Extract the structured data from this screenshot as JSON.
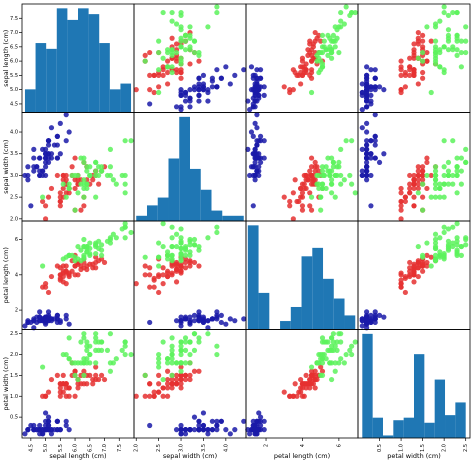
{
  "chart_data": {
    "type": "scatter",
    "kind": "scatter-matrix",
    "diagonal": "histogram",
    "variables": [
      "sepal length (cm)",
      "sepal width (cm)",
      "petal length (cm)",
      "petal width (cm)"
    ],
    "ranges": [
      [
        4.2,
        8.0
      ],
      [
        1.95,
        4.45
      ],
      [
        0.9,
        7.05
      ],
      [
        0.0,
        2.6
      ]
    ],
    "ticks": [
      [
        "4.5",
        "5.0",
        "5.5",
        "6.0",
        "6.5",
        "7.0",
        "7.5"
      ],
      [
        "2.0",
        "2.5",
        "3.0",
        "3.5",
        "4.0"
      ],
      [
        "2",
        "4",
        "6"
      ],
      [
        "0.5",
        "1.0",
        "1.5",
        "2.0",
        "2.5"
      ]
    ],
    "histograms": [
      {
        "bins": [
          [
            4.3,
            4.66,
            4
          ],
          [
            4.66,
            5.02,
            12
          ],
          [
            5.02,
            5.38,
            11
          ],
          [
            5.38,
            5.74,
            18
          ],
          [
            5.74,
            6.1,
            16
          ],
          [
            6.1,
            6.46,
            18
          ],
          [
            6.46,
            6.82,
            17
          ],
          [
            6.82,
            7.18,
            12
          ],
          [
            7.18,
            7.54,
            4
          ],
          [
            7.54,
            7.9,
            5
          ]
        ]
      },
      {
        "bins": [
          [
            2.0,
            2.24,
            2
          ],
          [
            2.24,
            2.48,
            6
          ],
          [
            2.48,
            2.72,
            9
          ],
          [
            2.72,
            2.96,
            24
          ],
          [
            2.96,
            3.2,
            40
          ],
          [
            3.2,
            3.44,
            20
          ],
          [
            3.44,
            3.68,
            12
          ],
          [
            3.68,
            3.92,
            4
          ],
          [
            3.92,
            4.16,
            2
          ],
          [
            4.16,
            4.4,
            2
          ]
        ]
      },
      {
        "bins": [
          [
            1.0,
            1.59,
            37
          ],
          [
            1.59,
            2.18,
            13
          ],
          [
            2.18,
            2.77,
            0
          ],
          [
            2.77,
            3.36,
            3
          ],
          [
            3.36,
            3.95,
            8
          ],
          [
            3.95,
            4.54,
            26
          ],
          [
            4.54,
            5.13,
            29
          ],
          [
            5.13,
            5.72,
            18
          ],
          [
            5.72,
            6.31,
            11
          ],
          [
            6.31,
            6.9,
            5
          ]
        ]
      },
      {
        "bins": [
          [
            0.1,
            0.34,
            41
          ],
          [
            0.34,
            0.58,
            8
          ],
          [
            0.58,
            0.82,
            1
          ],
          [
            0.82,
            1.06,
            7
          ],
          [
            1.06,
            1.3,
            8
          ],
          [
            1.3,
            1.54,
            33
          ],
          [
            1.54,
            1.78,
            6
          ],
          [
            1.78,
            2.02,
            23
          ],
          [
            2.02,
            2.26,
            9
          ],
          [
            2.26,
            2.5,
            14
          ]
        ]
      }
    ],
    "series": [
      {
        "color": "#1a1aa8",
        "values": [
          [
            5.1,
            3.5,
            1.4,
            0.2
          ],
          [
            4.9,
            3.0,
            1.4,
            0.2
          ],
          [
            4.7,
            3.2,
            1.3,
            0.2
          ],
          [
            4.6,
            3.1,
            1.5,
            0.2
          ],
          [
            5.0,
            3.6,
            1.4,
            0.2
          ],
          [
            5.4,
            3.9,
            1.7,
            0.4
          ],
          [
            4.6,
            3.4,
            1.4,
            0.3
          ],
          [
            5.0,
            3.4,
            1.5,
            0.2
          ],
          [
            4.4,
            2.9,
            1.4,
            0.2
          ],
          [
            4.9,
            3.1,
            1.5,
            0.1
          ],
          [
            5.4,
            3.7,
            1.5,
            0.2
          ],
          [
            4.8,
            3.4,
            1.6,
            0.2
          ],
          [
            4.8,
            3.0,
            1.4,
            0.1
          ],
          [
            4.3,
            3.0,
            1.1,
            0.1
          ],
          [
            5.8,
            4.0,
            1.2,
            0.2
          ],
          [
            5.7,
            4.4,
            1.5,
            0.4
          ],
          [
            5.4,
            3.9,
            1.3,
            0.4
          ],
          [
            5.1,
            3.5,
            1.4,
            0.3
          ],
          [
            5.7,
            3.8,
            1.7,
            0.3
          ],
          [
            5.1,
            3.8,
            1.5,
            0.3
          ],
          [
            5.4,
            3.4,
            1.7,
            0.2
          ],
          [
            5.1,
            3.7,
            1.5,
            0.4
          ],
          [
            4.6,
            3.6,
            1.0,
            0.2
          ],
          [
            5.1,
            3.3,
            1.7,
            0.5
          ],
          [
            4.8,
            3.4,
            1.9,
            0.2
          ],
          [
            5.0,
            3.0,
            1.6,
            0.2
          ],
          [
            5.0,
            3.4,
            1.6,
            0.4
          ],
          [
            5.2,
            3.5,
            1.5,
            0.2
          ],
          [
            5.2,
            3.4,
            1.4,
            0.2
          ],
          [
            4.7,
            3.2,
            1.6,
            0.2
          ],
          [
            4.8,
            3.1,
            1.6,
            0.2
          ],
          [
            5.4,
            3.4,
            1.5,
            0.4
          ],
          [
            5.2,
            4.1,
            1.5,
            0.1
          ],
          [
            5.5,
            4.2,
            1.4,
            0.2
          ],
          [
            4.9,
            3.1,
            1.5,
            0.2
          ],
          [
            5.0,
            3.2,
            1.2,
            0.2
          ],
          [
            5.5,
            3.5,
            1.3,
            0.2
          ],
          [
            4.9,
            3.6,
            1.4,
            0.1
          ],
          [
            4.4,
            3.0,
            1.3,
            0.2
          ],
          [
            5.1,
            3.4,
            1.5,
            0.2
          ],
          [
            5.0,
            3.5,
            1.3,
            0.3
          ],
          [
            4.5,
            2.3,
            1.3,
            0.3
          ],
          [
            4.4,
            3.2,
            1.3,
            0.2
          ],
          [
            5.0,
            3.5,
            1.6,
            0.6
          ],
          [
            5.1,
            3.8,
            1.9,
            0.4
          ],
          [
            4.8,
            3.0,
            1.4,
            0.3
          ],
          [
            5.1,
            3.8,
            1.6,
            0.2
          ],
          [
            4.6,
            3.2,
            1.4,
            0.2
          ],
          [
            5.3,
            3.7,
            1.5,
            0.2
          ],
          [
            5.0,
            3.3,
            1.4,
            0.2
          ]
        ]
      },
      {
        "color": "#e53030",
        "values": [
          [
            7.0,
            3.2,
            4.7,
            1.4
          ],
          [
            6.4,
            3.2,
            4.5,
            1.5
          ],
          [
            6.9,
            3.1,
            4.9,
            1.5
          ],
          [
            5.5,
            2.3,
            4.0,
            1.3
          ],
          [
            6.5,
            2.8,
            4.6,
            1.5
          ],
          [
            5.7,
            2.8,
            4.5,
            1.3
          ],
          [
            6.3,
            3.3,
            4.7,
            1.6
          ],
          [
            4.9,
            2.4,
            3.3,
            1.0
          ],
          [
            6.6,
            2.9,
            4.6,
            1.3
          ],
          [
            5.2,
            2.7,
            3.9,
            1.4
          ],
          [
            5.0,
            2.0,
            3.5,
            1.0
          ],
          [
            5.9,
            3.0,
            4.2,
            1.5
          ],
          [
            6.0,
            2.2,
            4.0,
            1.0
          ],
          [
            6.1,
            2.9,
            4.7,
            1.4
          ],
          [
            5.6,
            2.9,
            3.6,
            1.3
          ],
          [
            6.7,
            3.1,
            4.4,
            1.4
          ],
          [
            5.6,
            3.0,
            4.5,
            1.5
          ],
          [
            5.8,
            2.7,
            4.1,
            1.0
          ],
          [
            6.2,
            2.2,
            4.5,
            1.5
          ],
          [
            5.6,
            2.5,
            3.9,
            1.1
          ],
          [
            5.9,
            3.2,
            4.8,
            1.8
          ],
          [
            6.1,
            2.8,
            4.0,
            1.3
          ],
          [
            6.3,
            2.5,
            4.9,
            1.5
          ],
          [
            6.1,
            2.8,
            4.7,
            1.2
          ],
          [
            6.4,
            2.9,
            4.3,
            1.3
          ],
          [
            6.6,
            3.0,
            4.4,
            1.4
          ],
          [
            6.8,
            2.8,
            4.8,
            1.4
          ],
          [
            6.7,
            3.0,
            5.0,
            1.7
          ],
          [
            6.0,
            2.9,
            4.5,
            1.5
          ],
          [
            5.7,
            2.6,
            3.5,
            1.0
          ],
          [
            5.5,
            2.4,
            3.8,
            1.1
          ],
          [
            5.5,
            2.4,
            3.7,
            1.0
          ],
          [
            5.8,
            2.7,
            3.9,
            1.2
          ],
          [
            6.0,
            2.7,
            5.1,
            1.6
          ],
          [
            5.4,
            3.0,
            4.5,
            1.5
          ],
          [
            6.0,
            3.4,
            4.5,
            1.6
          ],
          [
            6.7,
            3.1,
            4.7,
            1.5
          ],
          [
            6.3,
            2.3,
            4.4,
            1.3
          ],
          [
            5.6,
            3.0,
            4.1,
            1.3
          ],
          [
            5.5,
            2.5,
            4.0,
            1.3
          ],
          [
            5.5,
            2.6,
            4.4,
            1.2
          ],
          [
            6.1,
            3.0,
            4.6,
            1.4
          ],
          [
            5.8,
            2.6,
            4.0,
            1.2
          ],
          [
            5.0,
            2.3,
            3.3,
            1.0
          ],
          [
            5.6,
            2.7,
            4.2,
            1.3
          ],
          [
            5.7,
            3.0,
            4.2,
            1.2
          ],
          [
            5.7,
            2.9,
            4.2,
            1.3
          ],
          [
            6.2,
            2.9,
            4.3,
            1.3
          ],
          [
            5.1,
            2.5,
            3.0,
            1.1
          ],
          [
            5.7,
            2.8,
            4.1,
            1.3
          ]
        ]
      },
      {
        "color": "#5cf25c",
        "values": [
          [
            6.3,
            3.3,
            6.0,
            2.5
          ],
          [
            5.8,
            2.7,
            5.1,
            1.9
          ],
          [
            7.1,
            3.0,
            5.9,
            2.1
          ],
          [
            6.3,
            2.9,
            5.6,
            1.8
          ],
          [
            6.5,
            3.0,
            5.8,
            2.2
          ],
          [
            7.6,
            3.0,
            6.6,
            2.1
          ],
          [
            4.9,
            2.5,
            4.5,
            1.7
          ],
          [
            7.3,
            2.9,
            6.3,
            1.8
          ],
          [
            6.7,
            2.5,
            5.8,
            1.8
          ],
          [
            7.2,
            3.6,
            6.1,
            2.5
          ],
          [
            6.5,
            3.2,
            5.1,
            2.0
          ],
          [
            6.4,
            2.7,
            5.3,
            1.9
          ],
          [
            6.8,
            3.0,
            5.5,
            2.1
          ],
          [
            5.7,
            2.5,
            5.0,
            2.0
          ],
          [
            5.8,
            2.8,
            5.1,
            2.4
          ],
          [
            6.4,
            3.2,
            5.3,
            2.3
          ],
          [
            6.5,
            3.0,
            5.5,
            1.8
          ],
          [
            7.7,
            3.8,
            6.7,
            2.2
          ],
          [
            7.7,
            2.6,
            6.9,
            2.3
          ],
          [
            6.0,
            2.2,
            5.0,
            1.5
          ],
          [
            6.9,
            3.2,
            5.7,
            2.3
          ],
          [
            5.6,
            2.8,
            4.9,
            2.0
          ],
          [
            7.7,
            2.8,
            6.7,
            2.0
          ],
          [
            6.3,
            2.7,
            4.9,
            1.8
          ],
          [
            6.7,
            3.3,
            5.7,
            2.1
          ],
          [
            7.2,
            3.2,
            6.0,
            1.8
          ],
          [
            6.2,
            2.8,
            4.8,
            1.8
          ],
          [
            6.1,
            3.0,
            4.9,
            1.8
          ],
          [
            6.4,
            2.8,
            5.6,
            2.1
          ],
          [
            7.2,
            3.0,
            5.8,
            1.6
          ],
          [
            7.4,
            2.8,
            6.1,
            1.9
          ],
          [
            7.9,
            3.8,
            6.4,
            2.0
          ],
          [
            6.4,
            2.8,
            5.6,
            2.2
          ],
          [
            6.3,
            2.8,
            5.1,
            1.5
          ],
          [
            6.1,
            2.6,
            5.6,
            1.4
          ],
          [
            7.7,
            3.0,
            6.1,
            2.3
          ],
          [
            6.3,
            3.4,
            5.6,
            2.4
          ],
          [
            6.4,
            3.1,
            5.5,
            1.8
          ],
          [
            6.0,
            3.0,
            4.8,
            1.8
          ],
          [
            6.9,
            3.1,
            5.4,
            2.1
          ],
          [
            6.7,
            3.1,
            5.6,
            2.4
          ],
          [
            6.9,
            3.1,
            5.1,
            2.3
          ],
          [
            5.8,
            2.7,
            5.1,
            1.9
          ],
          [
            6.8,
            3.2,
            5.9,
            2.3
          ],
          [
            6.7,
            3.3,
            5.7,
            2.5
          ],
          [
            6.7,
            3.0,
            5.2,
            2.3
          ],
          [
            6.3,
            2.5,
            5.0,
            1.9
          ],
          [
            6.5,
            3.0,
            5.2,
            2.0
          ],
          [
            6.2,
            3.4,
            5.4,
            2.3
          ],
          [
            5.9,
            3.0,
            5.1,
            1.8
          ]
        ]
      }
    ],
    "hist_color": "#1f77b4",
    "grid": false,
    "legend": "none"
  }
}
